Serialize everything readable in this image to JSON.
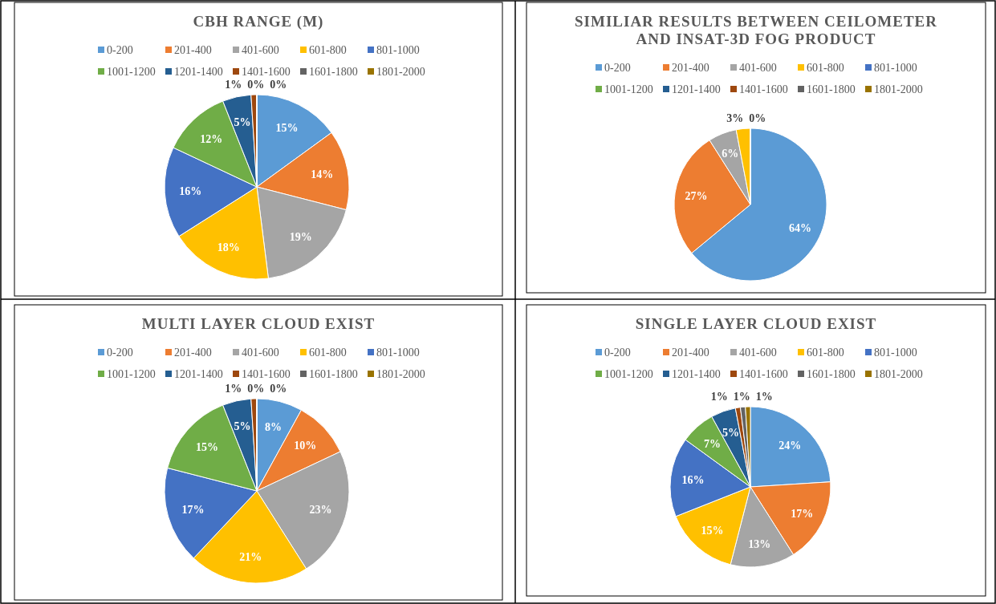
{
  "chart_data": [
    {
      "type": "pie",
      "title": "CBH RANGE (M)",
      "legend": "top",
      "value_labels": [
        "15%",
        "14%",
        "19%",
        "18%",
        "16%",
        "12%",
        "5%",
        "1%",
        "0%",
        "0%"
      ],
      "categories": [
        "0-200",
        "201-400",
        "401-600",
        "601-800",
        "801-1000",
        "1001-1200",
        "1201-1400",
        "1401-1600",
        "1601-1800",
        "1801-2000"
      ],
      "values": [
        15,
        14,
        19,
        18,
        16,
        12,
        5,
        1,
        0,
        0
      ],
      "colors": [
        "#5b9bd5",
        "#ed7d31",
        "#a5a5a5",
        "#ffc000",
        "#4472c4",
        "#70ad47",
        "#255e91",
        "#9e480e",
        "#636363",
        "#997300"
      ]
    },
    {
      "type": "pie",
      "title": "SIMILIAR RESULTS BETWEEN CEILOMETER AND INSAT-3D FOG PRODUCT",
      "legend": "top",
      "value_labels": [
        "64%",
        "27%",
        "6%",
        "3%",
        "0%",
        null,
        null,
        null,
        null,
        null
      ],
      "categories": [
        "0-200",
        "201-400",
        "401-600",
        "601-800",
        "801-1000",
        "1001-1200",
        "1201-1400",
        "1401-1600",
        "1601-1800",
        "1801-2000"
      ],
      "values": [
        64,
        27,
        6,
        3,
        0,
        0,
        0,
        0,
        0,
        0
      ],
      "colors": [
        "#5b9bd5",
        "#ed7d31",
        "#a5a5a5",
        "#ffc000",
        "#4472c4",
        "#70ad47",
        "#255e91",
        "#9e480e",
        "#636363",
        "#997300"
      ]
    },
    {
      "type": "pie",
      "title": "MULTI LAYER CLOUD EXIST",
      "legend": "top",
      "value_labels": [
        "8%",
        "10%",
        "23%",
        "21%",
        "17%",
        "15%",
        "5%",
        "1%",
        "0%",
        "0%"
      ],
      "categories": [
        "0-200",
        "201-400",
        "401-600",
        "601-800",
        "801-1000",
        "1001-1200",
        "1201-1400",
        "1401-1600",
        "1601-1800",
        "1801-2000"
      ],
      "values": [
        8,
        10,
        23,
        21,
        17,
        15,
        5,
        1,
        0,
        0
      ],
      "colors": [
        "#5b9bd5",
        "#ed7d31",
        "#a5a5a5",
        "#ffc000",
        "#4472c4",
        "#70ad47",
        "#255e91",
        "#9e480e",
        "#636363",
        "#997300"
      ]
    },
    {
      "type": "pie",
      "title": "SINGLE LAYER CLOUD EXIST",
      "legend": "top",
      "value_labels": [
        "24%",
        "17%",
        "13%",
        "15%",
        "16%",
        "7%",
        "5%",
        "1%",
        "1%",
        "1%"
      ],
      "categories": [
        "0-200",
        "201-400",
        "401-600",
        "601-800",
        "801-1000",
        "1001-1200",
        "1201-1400",
        "1401-1600",
        "1601-1800",
        "1801-2000"
      ],
      "values": [
        24,
        17,
        13,
        15,
        16,
        7,
        5,
        1,
        1,
        1
      ],
      "colors": [
        "#5b9bd5",
        "#ed7d31",
        "#a5a5a5",
        "#ffc000",
        "#4472c4",
        "#70ad47",
        "#255e91",
        "#9e480e",
        "#636363",
        "#997300"
      ]
    }
  ]
}
